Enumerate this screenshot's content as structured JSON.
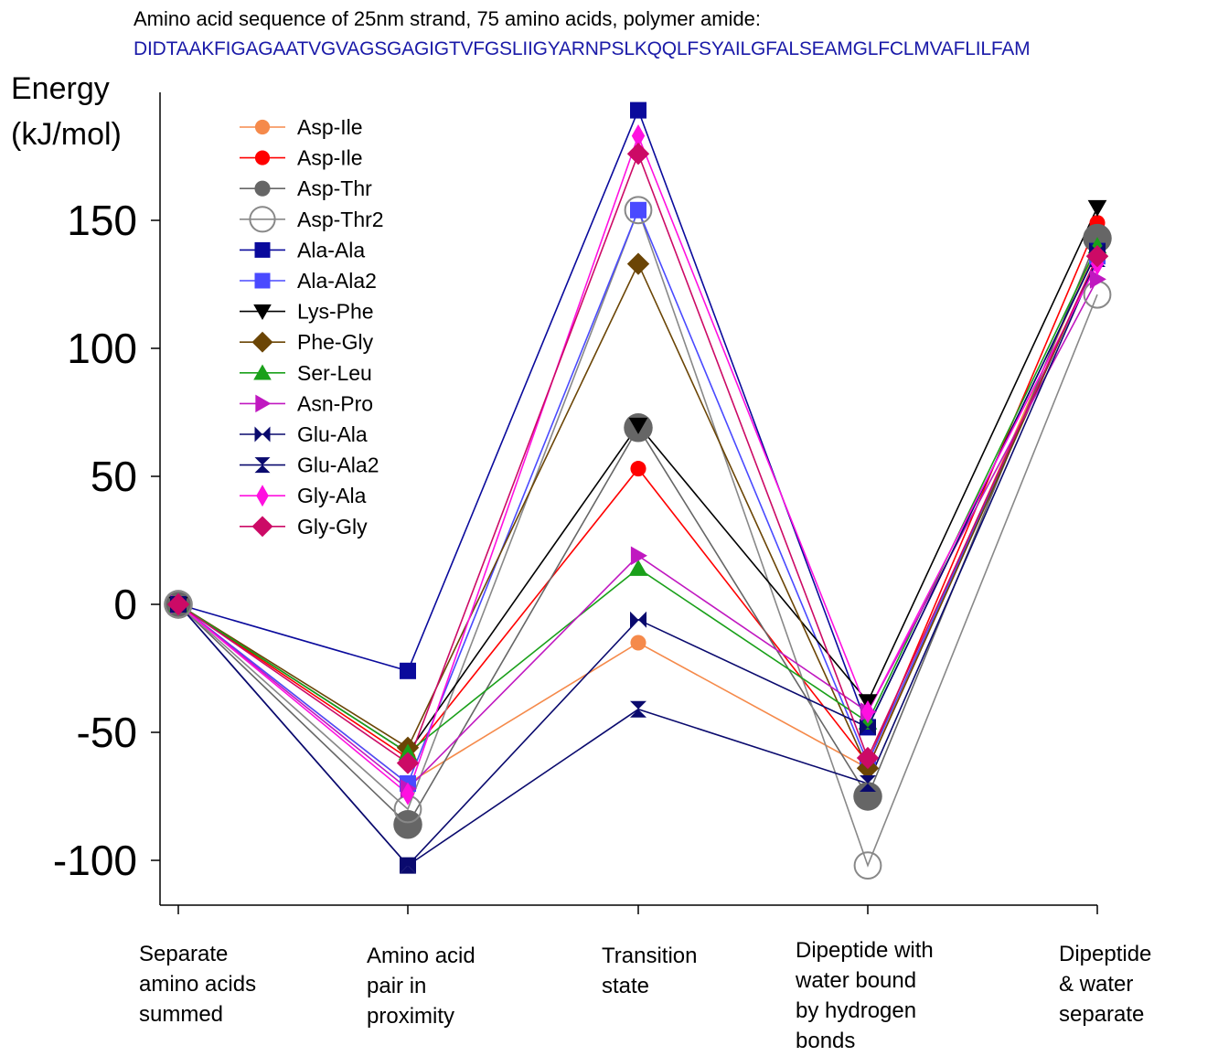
{
  "header": {
    "title": "Amino acid sequence of 25nm strand, 75 amino acids, polymer amide:",
    "sequence": "DIDTAAKFIGAGAATVGVAGSGAGIGTVFGSLIIGYARNPSLKQQLFSYAILGFALSEAMGLFCLMVAFLILFAM"
  },
  "chart_data": {
    "type": "line",
    "ylabel": [
      "Energy",
      "(kJ/mol)"
    ],
    "ylim": [
      -118,
      200
    ],
    "yticks": [
      -100,
      -50,
      0,
      50,
      100,
      150
    ],
    "ytick_labels": [
      "-100",
      "-50",
      "0",
      "50",
      "100",
      "150"
    ],
    "categories": [
      "Separate\namino acids\nsummed",
      "Amino acid\npair in\nproximity",
      "Transition\nstate",
      "Dipeptide with\nwater bound\nby hydrogen\nbonds",
      "Dipeptide\n& water\nseparate"
    ],
    "legend_position": "top-left",
    "grid": false,
    "series": [
      {
        "name": "Asp-Ile",
        "color": "#f58a4b",
        "marker": "circle",
        "values": [
          0,
          -70,
          -15,
          -64,
          140
        ]
      },
      {
        "name": "Asp-Ile",
        "color": "#ff0000",
        "marker": "circle",
        "values": [
          0,
          -60,
          53,
          -62,
          149
        ]
      },
      {
        "name": "Asp-Thr",
        "color": "#666666",
        "marker": "circle-large",
        "values": [
          0,
          -86,
          69,
          -75,
          143
        ]
      },
      {
        "name": "Asp-Thr2",
        "color": "#888888",
        "marker": "circle-open",
        "values": [
          0,
          -80,
          154,
          -102,
          121
        ]
      },
      {
        "name": "Ala-Ala",
        "color": "#0a0a9c",
        "marker": "square",
        "values": [
          0,
          -26,
          193,
          -48,
          138
        ]
      },
      {
        "name": "Ala-Ala2",
        "color": "#4a4aff",
        "marker": "square",
        "values": [
          0,
          -70,
          154,
          -62,
          136
        ]
      },
      {
        "name": "Lys-Phe",
        "color": "#000000",
        "marker": "triangle-down",
        "values": [
          0,
          -58,
          70,
          -38,
          155
        ]
      },
      {
        "name": "Phe-Gly",
        "color": "#6b4505",
        "marker": "diamond",
        "values": [
          0,
          -56,
          133,
          -64,
          136
        ]
      },
      {
        "name": "Ser-Leu",
        "color": "#1aa01a",
        "marker": "triangle-up",
        "values": [
          0,
          -58,
          14,
          -46,
          140
        ]
      },
      {
        "name": "Asn-Pro",
        "color": "#c018c0",
        "marker": "triangle-right",
        "values": [
          0,
          -72,
          19,
          -42,
          127
        ]
      },
      {
        "name": "Glu-Ala",
        "color": "#0a0a6e",
        "marker": "bowtie-h",
        "values": [
          0,
          -102,
          -6,
          -48,
          138
        ]
      },
      {
        "name": "Glu-Ala2",
        "color": "#0a0a6e",
        "marker": "bowtie-v",
        "values": [
          0,
          -102,
          -41,
          -70,
          135
        ]
      },
      {
        "name": "Gly-Ala",
        "color": "#ff10e0",
        "marker": "thin-diamond",
        "values": [
          0,
          -74,
          183,
          -42,
          133
        ]
      },
      {
        "name": "Gly-Gly",
        "color": "#cc0a66",
        "marker": "diamond",
        "values": [
          0,
          -62,
          176,
          -60,
          136
        ]
      }
    ]
  }
}
